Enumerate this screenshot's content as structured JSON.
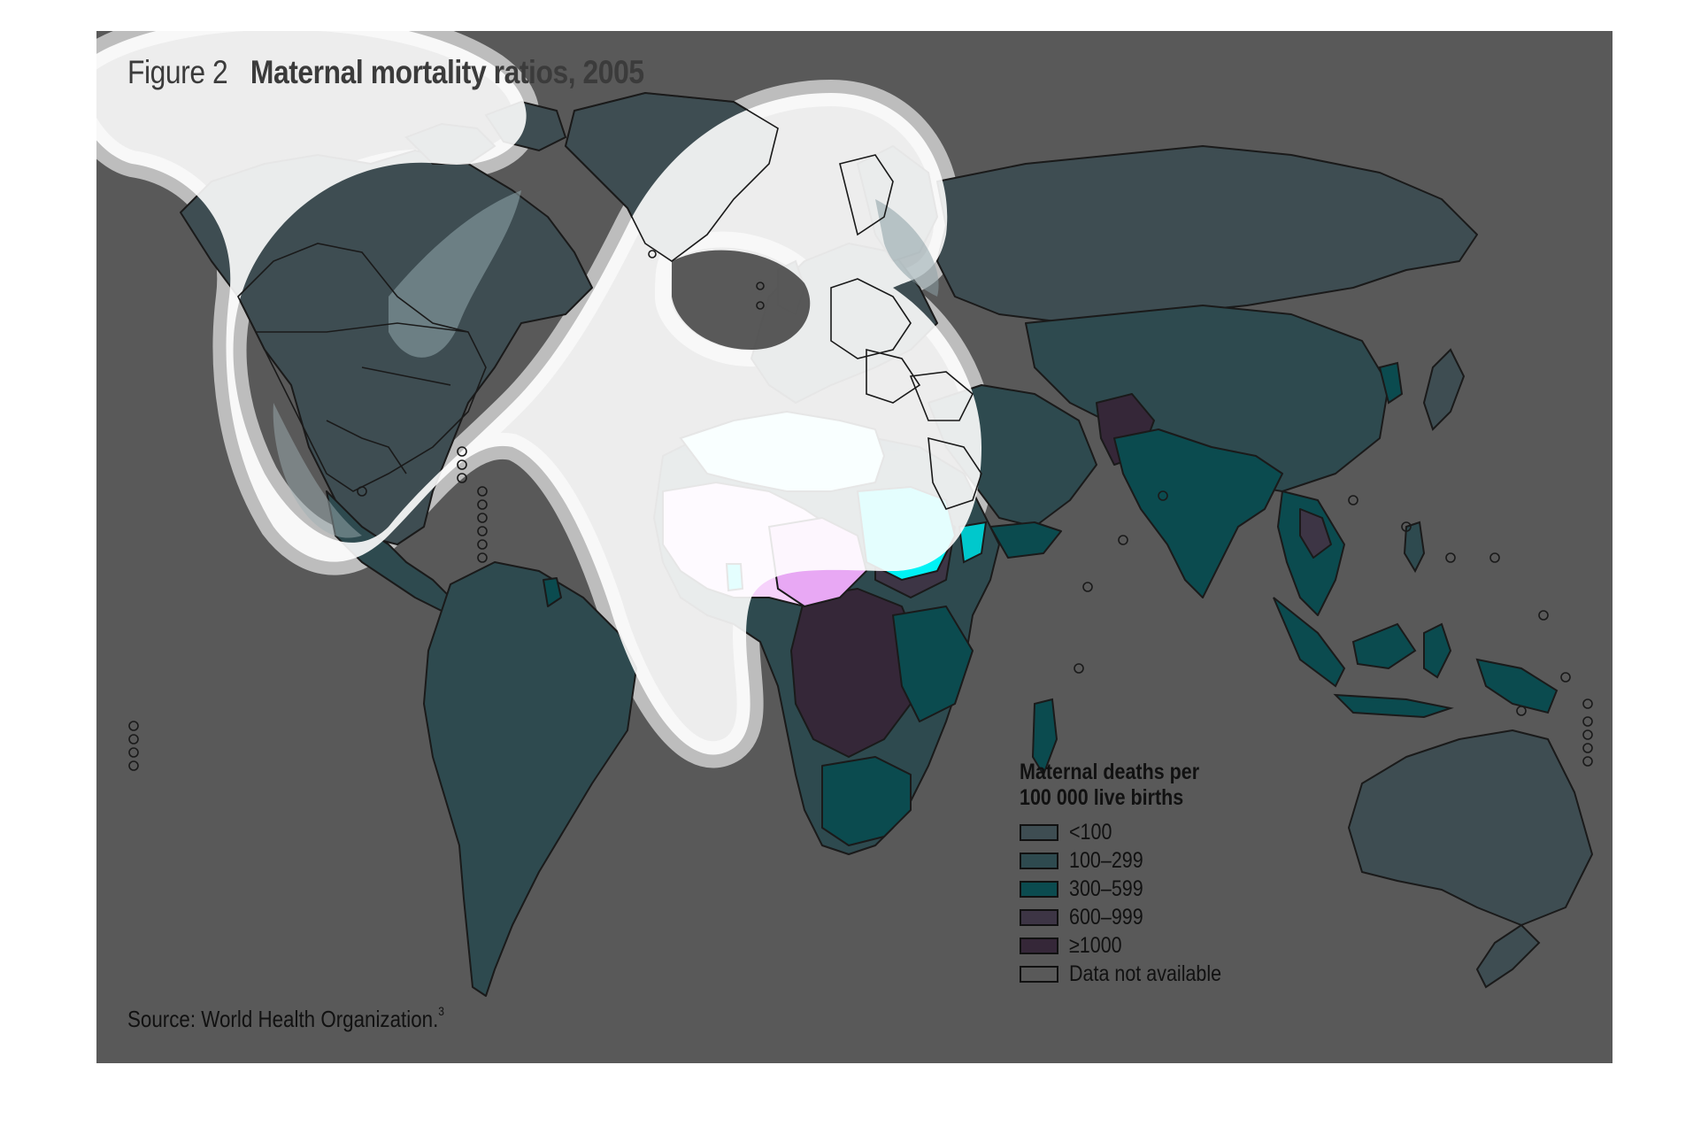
{
  "figure": {
    "label": "Figure 2",
    "title": "Maternal mortality ratios, 2005",
    "source_text": "Source: World Health Organization.",
    "source_ref": "3"
  },
  "legend": {
    "title_line1": "Maternal deaths per",
    "title_line2": "100 000 live births",
    "items": [
      {
        "label": "<100",
        "color": "#3e4d52"
      },
      {
        "label": "100–299",
        "color": "#2e4a4f"
      },
      {
        "label": "300–599",
        "color": "#0b4b4f"
      },
      {
        "label": "600–999",
        "color": "#3d3545"
      },
      {
        "label": "≥1000",
        "color": "#352738"
      },
      {
        "label": "Data not available",
        "color": "#595959"
      }
    ]
  },
  "map": {
    "background": "#595959",
    "highlight_colors": {
      "cyan_bright": "#00f2f5",
      "cyan_pale": "#c8fbfb",
      "pink_pale": "#f6d2fb",
      "pink": "#e8a8f4"
    }
  }
}
